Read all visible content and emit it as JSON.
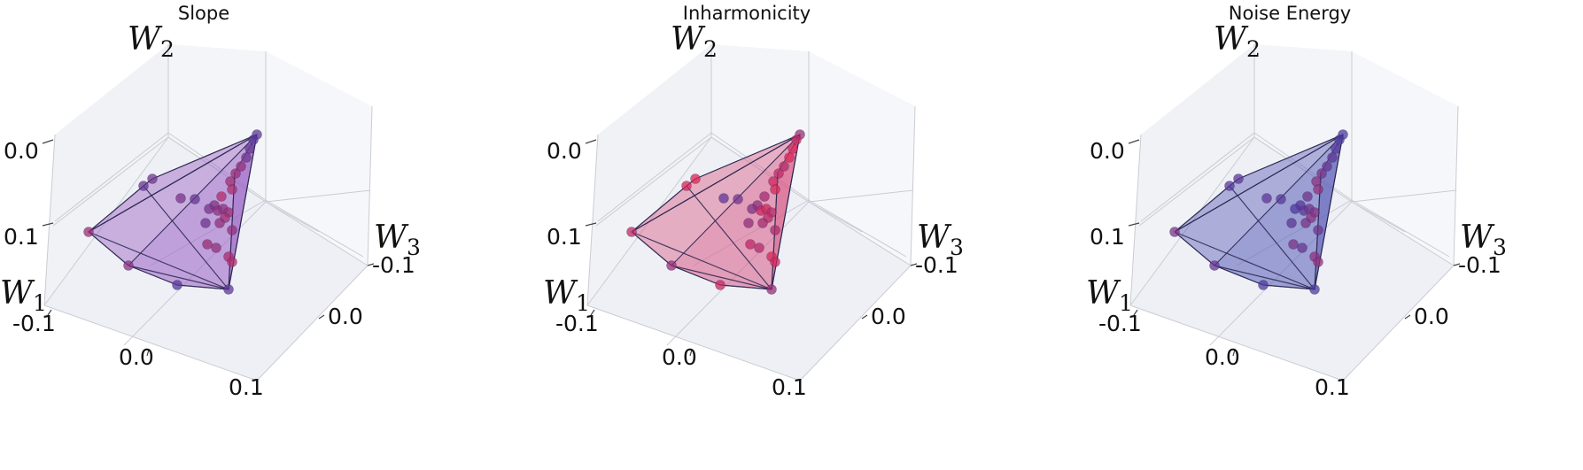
{
  "chart_data": [
    {
      "type": "scatter3d",
      "title": "Slope",
      "color_range": [
        "#3b3ca6",
        "#e8234f"
      ],
      "color_values": [
        0.2,
        0.15,
        0.25,
        0.3,
        0.5,
        0.55,
        0.6,
        0.65,
        0.7,
        0.4,
        0.35,
        0.5,
        0.45,
        0.55,
        0.6,
        0.5,
        0.3,
        0.25,
        0.35,
        0.5,
        0.65,
        0.7,
        0.55,
        0.45
      ],
      "hull_fill": "#9a5fc4",
      "axes": {
        "x": {
          "label": "W",
          "sub": "1",
          "ticks": [
            "-0.1",
            "0.0",
            "0.1"
          ]
        },
        "y": {
          "label": "W",
          "sub": "2",
          "ticks": [
            "0.0",
            "0.1"
          ]
        },
        "z": {
          "label": "W",
          "sub": "3",
          "ticks": [
            "-0.1",
            "0.0"
          ]
        }
      }
    },
    {
      "type": "scatter3d",
      "title": "Inharmonicity",
      "color_range": [
        "#3b3ca6",
        "#e8234f"
      ],
      "color_values": [
        0.55,
        0.8,
        0.9,
        0.95,
        0.7,
        0.75,
        0.85,
        0.9,
        0.6,
        0.5,
        0.4,
        0.8,
        0.85,
        0.7,
        0.75,
        0.6,
        0.5,
        0.3,
        0.2,
        0.65,
        0.9,
        0.85,
        0.75,
        0.55
      ],
      "hull_fill": "#d95a86",
      "axes": {
        "x": {
          "label": "W",
          "sub": "1",
          "ticks": [
            "-0.1",
            "0.0",
            "0.1"
          ]
        },
        "y": {
          "label": "W",
          "sub": "2",
          "ticks": [
            "0.0",
            "0.1"
          ]
        },
        "z": {
          "label": "W",
          "sub": "3",
          "ticks": [
            "-0.1",
            "0.0"
          ]
        }
      }
    },
    {
      "type": "scatter3d",
      "title": "Noise Energy",
      "color_range": [
        "#3b3ca6",
        "#e8234f"
      ],
      "color_values": [
        0.1,
        0.1,
        0.15,
        0.2,
        0.25,
        0.35,
        0.45,
        0.5,
        0.3,
        0.15,
        0.1,
        0.2,
        0.3,
        0.4,
        0.45,
        0.35,
        0.2,
        0.15,
        0.2,
        0.3,
        0.45,
        0.5,
        0.35,
        0.25
      ],
      "hull_fill": "#5a5cb8",
      "axes": {
        "x": {
          "label": "W",
          "sub": "1",
          "ticks": [
            "-0.1",
            "0.0",
            "0.1"
          ]
        },
        "y": {
          "label": "W",
          "sub": "2",
          "ticks": [
            "0.0",
            "0.1"
          ]
        },
        "z": {
          "label": "W",
          "sub": "3",
          "ticks": [
            "-0.1",
            "0.0"
          ]
        }
      }
    }
  ]
}
